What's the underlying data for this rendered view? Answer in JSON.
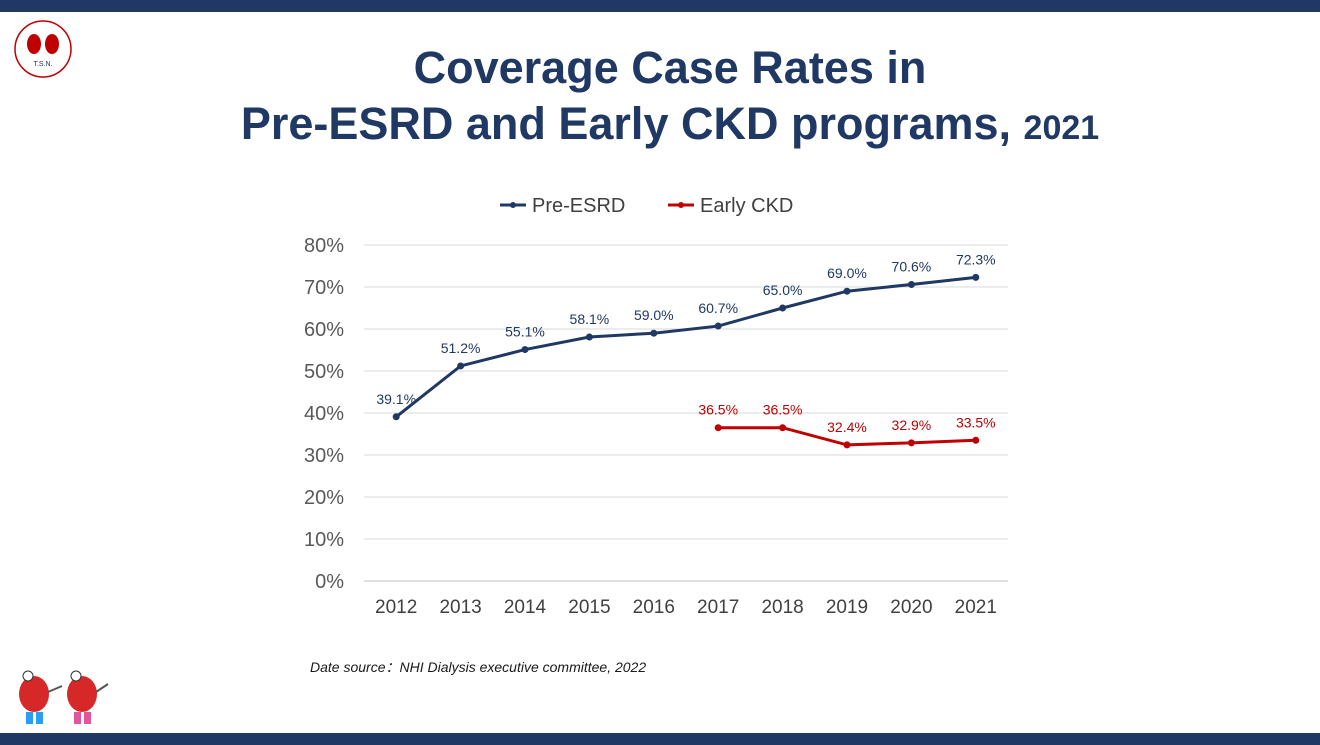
{
  "slide": {
    "title_line1": "Coverage Case Rates in",
    "title_line2": "Pre-ESRD and Early CKD programs,",
    "title_year": "2021",
    "source_note": "Date source：NHI Dialysis executive committee, 2022",
    "logo_text": "T.S.N."
  },
  "colors": {
    "brand": "#1f3864",
    "pre_esrd": "#1f3864",
    "early_ckd": "#c00000",
    "grid": "#d9d9d9"
  },
  "chart_data": {
    "type": "line",
    "title": "",
    "xlabel": "",
    "ylabel": "",
    "ylim": [
      0,
      80
    ],
    "y_ticks": [
      "0%",
      "10%",
      "20%",
      "30%",
      "40%",
      "50%",
      "60%",
      "70%",
      "80%"
    ],
    "categories": [
      "2012",
      "2013",
      "2014",
      "2015",
      "2016",
      "2017",
      "2018",
      "2019",
      "2020",
      "2021"
    ],
    "grid": true,
    "legend_position": "top",
    "series": [
      {
        "name": "Pre-ESRD",
        "color": "#1f3864",
        "values": [
          39.1,
          51.2,
          55.1,
          58.1,
          59.0,
          60.7,
          65.0,
          69.0,
          70.6,
          72.3
        ],
        "labels": [
          "39.1%",
          "51.2%",
          "55.1%",
          "58.1%",
          "59.0%",
          "60.7%",
          "65.0%",
          "69.0%",
          "70.6%",
          "72.3%"
        ]
      },
      {
        "name": "Early CKD",
        "color": "#c00000",
        "values": [
          null,
          null,
          null,
          null,
          null,
          36.5,
          36.5,
          32.4,
          32.9,
          33.5
        ],
        "labels": [
          null,
          null,
          null,
          null,
          null,
          "36.5%",
          "36.5%",
          "32.4%",
          "32.9%",
          "33.5%"
        ]
      }
    ]
  }
}
